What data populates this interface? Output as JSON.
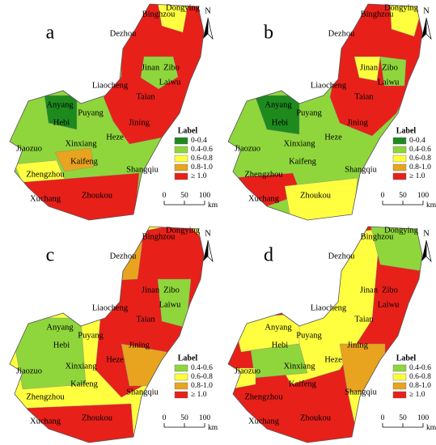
{
  "panels": [
    {
      "letter": "a",
      "north": "N",
      "legend": {
        "title": "Label",
        "items": [
          {
            "label": "0-0.4",
            "color": "#1e8a1e"
          },
          {
            "label": "0.4-0.6",
            "color": "#8fd63c"
          },
          {
            "label": "0.6-0.8",
            "color": "#ffff40"
          },
          {
            "label": "0.8-1.0",
            "color": "#e8a41e"
          },
          {
            "label": "≥ 1.0",
            "color": "#e8201a"
          }
        ]
      },
      "cities": [
        "Dongying",
        "Binghzou",
        "Dezhou",
        "Jinan",
        "Zibo",
        "Liaocheng",
        "Laiwu",
        "Taian",
        "Jining",
        "Anyang",
        "Puyang",
        "Hebi",
        "Heze",
        "Xinxiang",
        "Jiaozuo",
        "Kaifeng",
        "Zhengzhou",
        "Shangqiu",
        "Xuchang",
        "Zhoukou"
      ],
      "scale": {
        "ticks": [
          0,
          50,
          100
        ],
        "unit": "km"
      }
    },
    {
      "letter": "b",
      "north": "N",
      "legend": {
        "title": "Label",
        "items": [
          {
            "label": "0-0.4",
            "color": "#1e8a1e"
          },
          {
            "label": "0.4-0.6",
            "color": "#8fd63c"
          },
          {
            "label": "0.6-0.8",
            "color": "#ffff40"
          },
          {
            "label": "0.8-1.0",
            "color": "#e8a41e"
          },
          {
            "label": "≥ 1.0",
            "color": "#e8201a"
          }
        ]
      },
      "cities": [
        "Dongying",
        "Binghzou",
        "Dezhou",
        "Jinan",
        "Zibo",
        "Liaocheng",
        "Laiwu",
        "Taian",
        "Jining",
        "Anyang",
        "Puyang",
        "Hebi",
        "Heze",
        "Xinxiang",
        "Jiaozuo",
        "Kaifeng",
        "Zhengzhou",
        "Shangqiu",
        "Xuchang",
        "Zhoukou"
      ],
      "scale": {
        "ticks": [
          0,
          50,
          100
        ],
        "unit": "km"
      }
    },
    {
      "letter": "c",
      "north": "N",
      "legend": {
        "title": "Label",
        "items": [
          {
            "label": "0.4-0.6",
            "color": "#8fd63c"
          },
          {
            "label": "0.6-0.8",
            "color": "#ffff40"
          },
          {
            "label": "0.8-1.0",
            "color": "#e8a41e"
          },
          {
            "label": "≥ 1.0",
            "color": "#e8201a"
          }
        ]
      },
      "cities": [
        "Dongying",
        "Binghzou",
        "Dezhou",
        "Jinan",
        "Zibo",
        "Liaocheng",
        "Laiwu",
        "Taian",
        "Jining",
        "Anyang",
        "Puyang",
        "Hebi",
        "Heze",
        "Xinxiang",
        "Jiaozuo",
        "Kaifeng",
        "Zhengzhou",
        "Shangqiu",
        "Xuchang",
        "Zhoukou"
      ],
      "scale": {
        "ticks": [
          0,
          50,
          100
        ],
        "unit": "km"
      }
    },
    {
      "letter": "d",
      "north": "N",
      "legend": {
        "title": "Label",
        "items": [
          {
            "label": "0.4-0.6",
            "color": "#8fd63c"
          },
          {
            "label": "0.6-0.8",
            "color": "#ffff40"
          },
          {
            "label": "0.8-1.0",
            "color": "#e8a41e"
          },
          {
            "label": "≥ 1.0",
            "color": "#e8201a"
          }
        ]
      },
      "cities": [
        "Dongying",
        "Binghzou",
        "Dezhou",
        "Jinan",
        "Zibo",
        "Liaocheng",
        "Laiwu",
        "Taian",
        "Jining",
        "Anyang",
        "Puyang",
        "Hebi",
        "Heze",
        "Xinxiang",
        "Jiaozuo",
        "Kaifeng",
        "Zhengzhou",
        "Shangqiu",
        "Xuchang",
        "Zhoukou"
      ],
      "scale": {
        "ticks": [
          0,
          50,
          100
        ],
        "unit": "km"
      }
    }
  ]
}
